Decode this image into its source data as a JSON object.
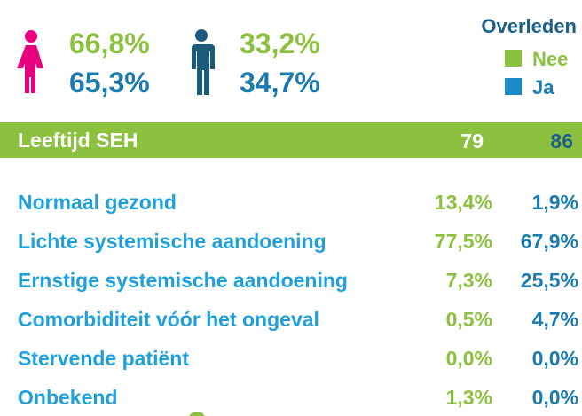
{
  "gender": {
    "female": {
      "nee": "66,8%",
      "ja": "65,3%"
    },
    "male": {
      "nee": "33,2%",
      "ja": "34,7%"
    }
  },
  "legend": {
    "title": "Overleden",
    "items": [
      "Nee",
      "Ja"
    ]
  },
  "age": {
    "label": "Leeftijd SEH",
    "nee": "79",
    "ja": "86"
  },
  "table": {
    "rows": [
      [
        "Normaal gezond",
        "13,4%",
        "1,9%"
      ],
      [
        "Lichte systemische aandoening",
        "77,5%",
        "67,9%"
      ],
      [
        "Ernstige systemische aandoening",
        "7,3%",
        "25,5%"
      ],
      [
        "Comorbiditeit vóór het ongeval",
        "0,5%",
        "4,7%"
      ],
      [
        "Stervende patiënt",
        "0,0%",
        "0,0%"
      ],
      [
        "Onbekend",
        "1,3%",
        "0,0%"
      ]
    ]
  }
}
